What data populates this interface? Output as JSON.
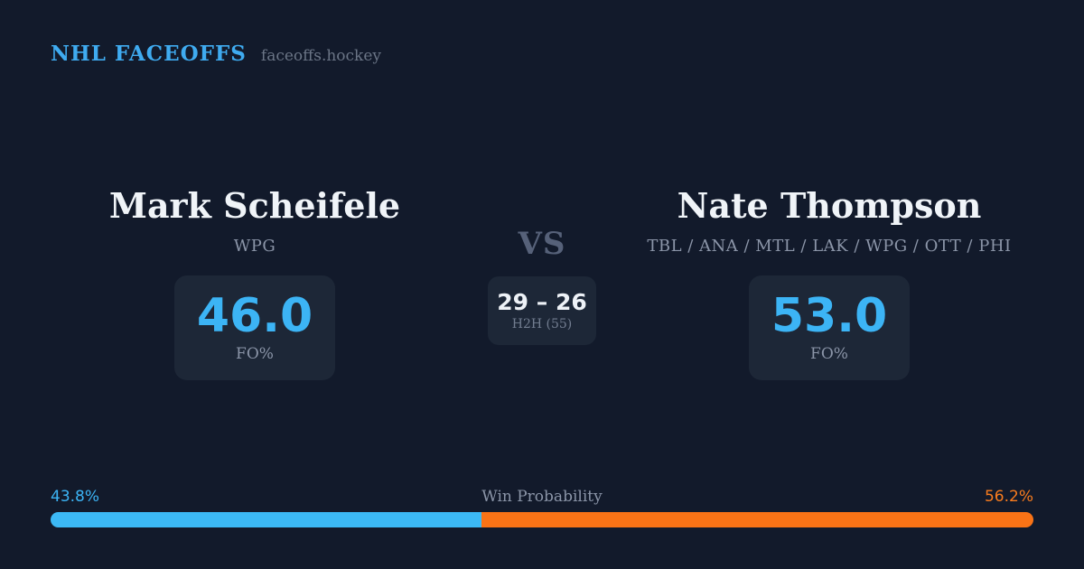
{
  "header": {
    "title": "NHL FACEOFFS",
    "site": "faceoffs.hockey"
  },
  "player_left": {
    "name": "Mark Scheifele",
    "teams": "WPG",
    "stat_value": "46.0",
    "stat_label": "FO%"
  },
  "player_right": {
    "name": "Nate Thompson",
    "teams": "TBL / ANA / MTL / LAK / WPG / OTT / PHI",
    "stat_value": "53.0",
    "stat_label": "FO%"
  },
  "matchup": {
    "vs_label": "VS",
    "h2h_score": "29 – 26",
    "h2h_label": "H2H (55)"
  },
  "win_probability": {
    "title": "Win Probability",
    "left_pct_label": "43.8%",
    "right_pct_label": "56.2%",
    "left_width": "43.8%",
    "right_width": "56.2%"
  },
  "colors": {
    "background": "#121a2b",
    "card": "#1d2737",
    "accent_blue": "#3cb4f5",
    "accent_orange": "#f97316",
    "text_white": "#f0f4f8",
    "text_gray": "#8b95a8",
    "vs_slate": "#566179"
  }
}
